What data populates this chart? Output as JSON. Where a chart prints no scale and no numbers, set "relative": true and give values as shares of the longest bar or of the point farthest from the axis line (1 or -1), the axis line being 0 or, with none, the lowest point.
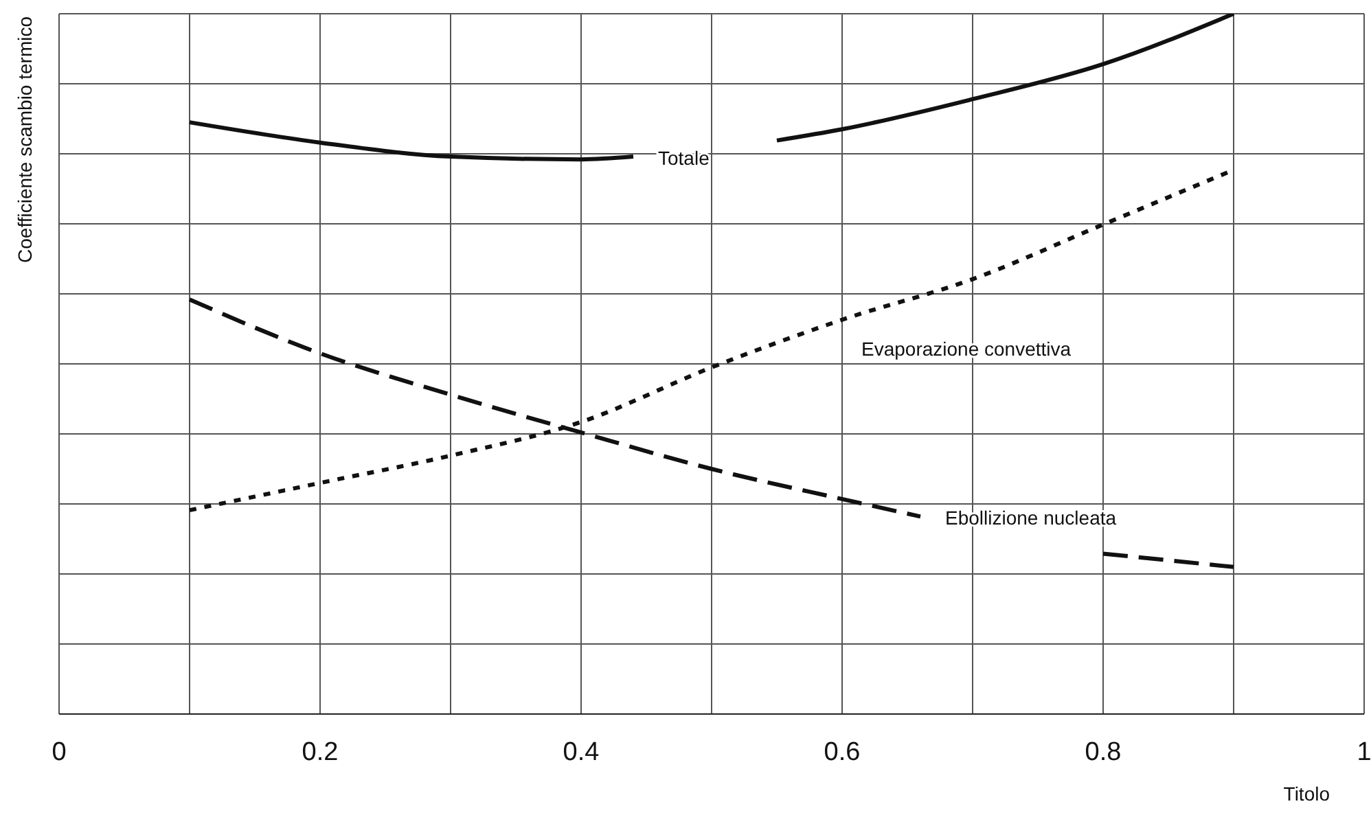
{
  "chart_data": {
    "type": "line",
    "relative": true,
    "xlabel": "Titolo",
    "ylabel": "Coefficiente scambio termico",
    "xlim": [
      0,
      1
    ],
    "xticks": [
      0,
      {
        "value": 0.1,
        "label": null
      },
      0.2,
      {
        "value": 0.3,
        "label": null
      },
      0.4,
      {
        "value": 0.5,
        "label": null
      },
      0.6,
      {
        "value": 0.7,
        "label": null
      },
      0.8,
      {
        "value": 0.9,
        "label": null
      },
      1
    ],
    "grid": true,
    "legend": false,
    "marker": "none",
    "series": [
      {
        "name": "Totale",
        "color": "#111111",
        "line_style": "solid",
        "x": [
          0.1,
          0.2,
          0.3,
          0.4,
          0.44,
          0.5,
          0.55,
          0.6,
          0.7,
          0.8,
          0.9
        ],
        "values": [
          0.845,
          0.816,
          0.796,
          0.792,
          0.796,
          null,
          0.819,
          0.835,
          0.878,
          0.928,
          1
        ]
      },
      {
        "name": "Evaporazione convettiva",
        "color": "#111111",
        "line_style": "dotted",
        "x": [
          0.1,
          0.2,
          0.3,
          0.4,
          0.5,
          0.6,
          0.7,
          0.8,
          0.9
        ],
        "values": [
          0.291,
          0.33,
          0.369,
          0.417,
          0.495,
          0.563,
          0.621,
          0.699,
          0.777
        ]
      },
      {
        "name": "Ebollizione nucleata",
        "color": "#111111",
        "line_style": "dashed",
        "x": [
          0.1,
          0.2,
          0.3,
          0.4,
          0.5,
          0.6,
          0.66,
          0.73,
          0.8,
          0.9
        ],
        "values": [
          0.592,
          0.515,
          0.456,
          0.402,
          0.35,
          0.307,
          0.282,
          null,
          0.229,
          0.21
        ]
      }
    ]
  }
}
